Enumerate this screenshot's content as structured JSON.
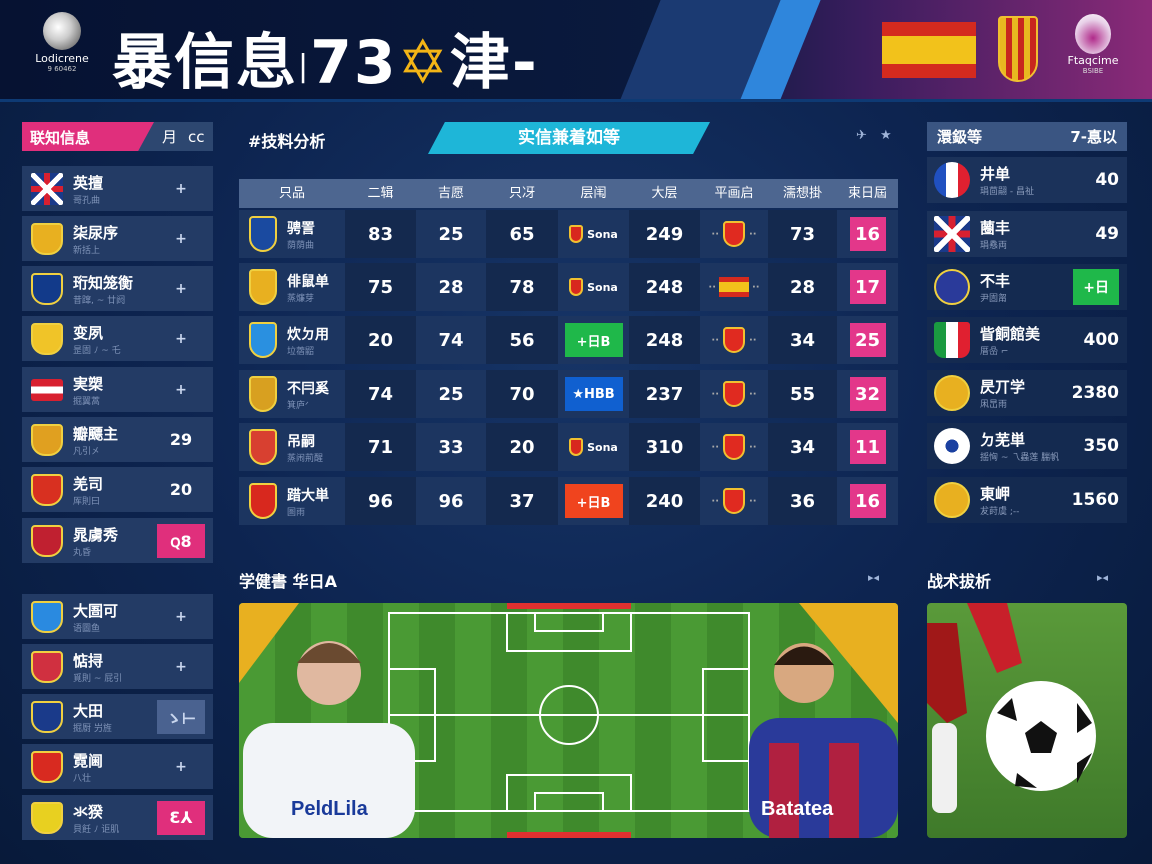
{
  "header": {
    "logo_text": "Lodicrene",
    "logo_sub": "9 60462",
    "title": "暴信息",
    "title_sep": "|",
    "title_num": "73",
    "title_star": "✡",
    "title_end": "津-",
    "logo2_text": "Ftaqcime",
    "logo2_sub": "BSIBE"
  },
  "left_panel": {
    "title": "联知信息",
    "tab1": "月",
    "tab2": "cc",
    "items": [
      {
        "name": "英擅",
        "sub": "哥孔曲",
        "right": "+",
        "style": "plus",
        "crest": "uk"
      },
      {
        "name": "柒尿序",
        "sub": "新括上",
        "right": "+",
        "style": "plus",
        "crest": "#e8b020"
      },
      {
        "name": "珩知笼衡",
        "sub": "昔蹿, ~ 廿阏",
        "right": "+",
        "style": "plus",
        "crest": "#123a8a"
      },
      {
        "name": "变夙",
        "sub": "昰圁 ﾉ ~ 乇",
        "right": "+",
        "style": "plus",
        "crest": "#f0c428"
      },
      {
        "name": "実槊",
        "sub": "掘翼蒿",
        "right": "+",
        "style": "plus",
        "crest": "at"
      },
      {
        "name": "瓣飃主",
        "sub": "凡引㐅",
        "right": "29",
        "style": "num",
        "crest": "#e0a020"
      },
      {
        "name": "羌司",
        "sub": "厍則曰",
        "right": "20",
        "style": "num",
        "crest": "#d83020"
      },
      {
        "name": "晁虜秀",
        "sub": "丸昏",
        "right": "ꞯ8",
        "style": "pink",
        "crest": "#c02030"
      }
    ],
    "items2": [
      {
        "name": "大圄可",
        "sub": "语圖鱼",
        "right": "+",
        "style": "plus",
        "crest": "#2a8ae0"
      },
      {
        "name": "惦挦",
        "sub": "覓則 ~ 屁引",
        "right": "+",
        "style": "plus",
        "crest": "#d03040"
      },
      {
        "name": "大田",
        "sub": "掘㕑 屶旌",
        "right": "ゝ⊢",
        "style": "grey",
        "crest": "#1a3a8a"
      },
      {
        "name": "霓阃",
        "sub": "八壮",
        "right": "+",
        "style": "plus",
        "crest": "#d82a20"
      },
      {
        "name": "氺猤",
        "sub": "貝飪 ﾉ 讵肌",
        "right": "Ɛ⅄",
        "style": "pink",
        "crest": "#e8d020"
      }
    ]
  },
  "analysis": {
    "title": "#技料分析",
    "banner": "实信兼着如等",
    "icon1": "✈",
    "icon2": "★",
    "columns": [
      "只品",
      "二辑",
      "吉愿",
      "只冴",
      "层闱",
      "大层",
      "平画启",
      "濡想掛",
      "束日屆"
    ],
    "rows": [
      {
        "team": "骋詈",
        "sub": "荫荫曲",
        "crest": "#1a4aa0",
        "c2": "83",
        "c3": "25",
        "c4": "65",
        "tag": "Sona",
        "tagstyle": "text",
        "c6": "249",
        "c7": "crest",
        "c8": "73",
        "c9": "16"
      },
      {
        "team": "俳鼠单",
        "sub": "蒸燫芽",
        "crest": "#e8b020",
        "c2": "75",
        "c3": "28",
        "c4": "78",
        "tag": "Sona",
        "tagstyle": "text",
        "c6": "248",
        "c7": "flag",
        "c8": "28",
        "c9": "17"
      },
      {
        "team": "炊ㄉ用",
        "sub": "垃蓿鼦",
        "crest": "#2a90e0",
        "c2": "20",
        "c3": "74",
        "c4": "56",
        "tag": "+日B",
        "tagstyle": "green",
        "c6": "248",
        "c7": "crest",
        "c8": "34",
        "c9": "25"
      },
      {
        "team": "不冃奚",
        "sub": "箕庐ᐟ",
        "crest": "#d8a020",
        "c2": "74",
        "c3": "25",
        "c4": "70",
        "tag": "★HBB",
        "tagstyle": "blue",
        "c6": "237",
        "c7": "crest",
        "c8": "55",
        "c9": "32"
      },
      {
        "team": "吊嗣",
        "sub": "蒸闹荊醒",
        "crest": "#d84030",
        "c2": "71",
        "c3": "33",
        "c4": "20",
        "tag": "Sona",
        "tagstyle": "text",
        "c6": "310",
        "c7": "crest",
        "c8": "34",
        "c9": "11"
      },
      {
        "team": "踖大単",
        "sub": "圄雨",
        "crest": "#d8281e",
        "c2": "96",
        "c3": "96",
        "c4": "37",
        "tag": "+日B",
        "tagstyle": "red",
        "c6": "240",
        "c7": "crest",
        "c8": "36",
        "c9": "16"
      }
    ]
  },
  "right_panel": {
    "title": "澴鈒等",
    "right_label": "7-惪以",
    "items": [
      {
        "name": "井单",
        "sub": "琄茴翤 - 昌祉",
        "value": "40",
        "crest": "fr"
      },
      {
        "name": "蔨丰",
        "sub": "琄㦌両",
        "value": "49",
        "crest": "uk"
      },
      {
        "name": "不丰",
        "sub": "尹圁甮",
        "value": "+日",
        "crest": "#2a3a9a",
        "green": true
      },
      {
        "name": "眥餇館美",
        "sub": "厝喦 ⌐",
        "value": "400",
        "crest": "it"
      },
      {
        "name": "昃丌学",
        "sub": "凩旵雨",
        "value": "2380",
        "crest": "#e8b020"
      },
      {
        "name": "ㄉ芜単",
        "sub": "揺恟 ~ 乁蟲莲 腨帆",
        "value": "350",
        "crest": "ball"
      },
      {
        "name": "東岬",
        "sub": "犮莳虞 ;--",
        "value": "1560",
        "crest": "#e8b020"
      }
    ]
  },
  "match": {
    "title": "学健書 华日A",
    "arrows": "▸◂",
    "player1_shirt": "PeldLila",
    "player2_shirt": "Batatea"
  },
  "tactics": {
    "title": "战术拔析",
    "arrows": "▸◂"
  }
}
